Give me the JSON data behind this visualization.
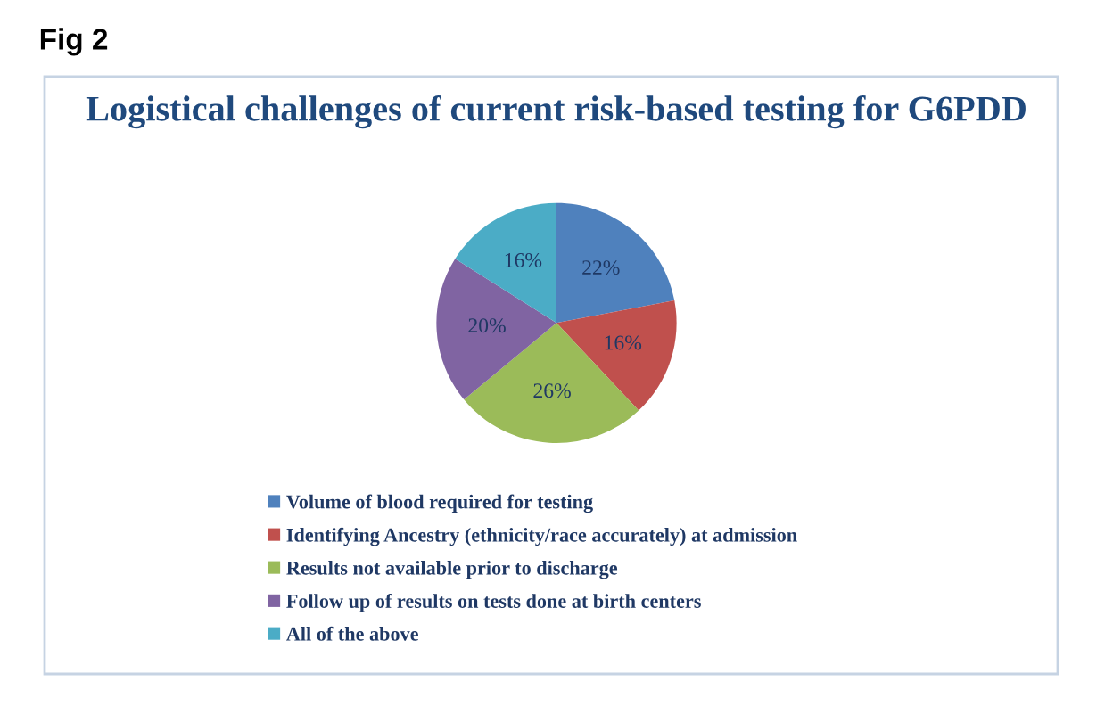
{
  "chart_data": {
    "type": "pie",
    "title": "Logistical challenges of current risk-based testing for G6PDD",
    "categories": [
      "Volume of blood required for testing",
      "Identifying Ancestry (ethnicity/race accurately) at admission",
      "Results not available prior to discharge",
      "Follow up of results on tests done at birth centers",
      "All of the above"
    ],
    "values": [
      22,
      16,
      26,
      20,
      16
    ],
    "colors": [
      "#4f81bd",
      "#c0504d",
      "#9bbb59",
      "#8064a2",
      "#4bacc6"
    ],
    "value_labels": [
      "22%",
      "16%",
      "26%",
      "20%",
      "16%"
    ],
    "legend": "bottom",
    "annotations": [
      "Fig 2"
    ]
  }
}
